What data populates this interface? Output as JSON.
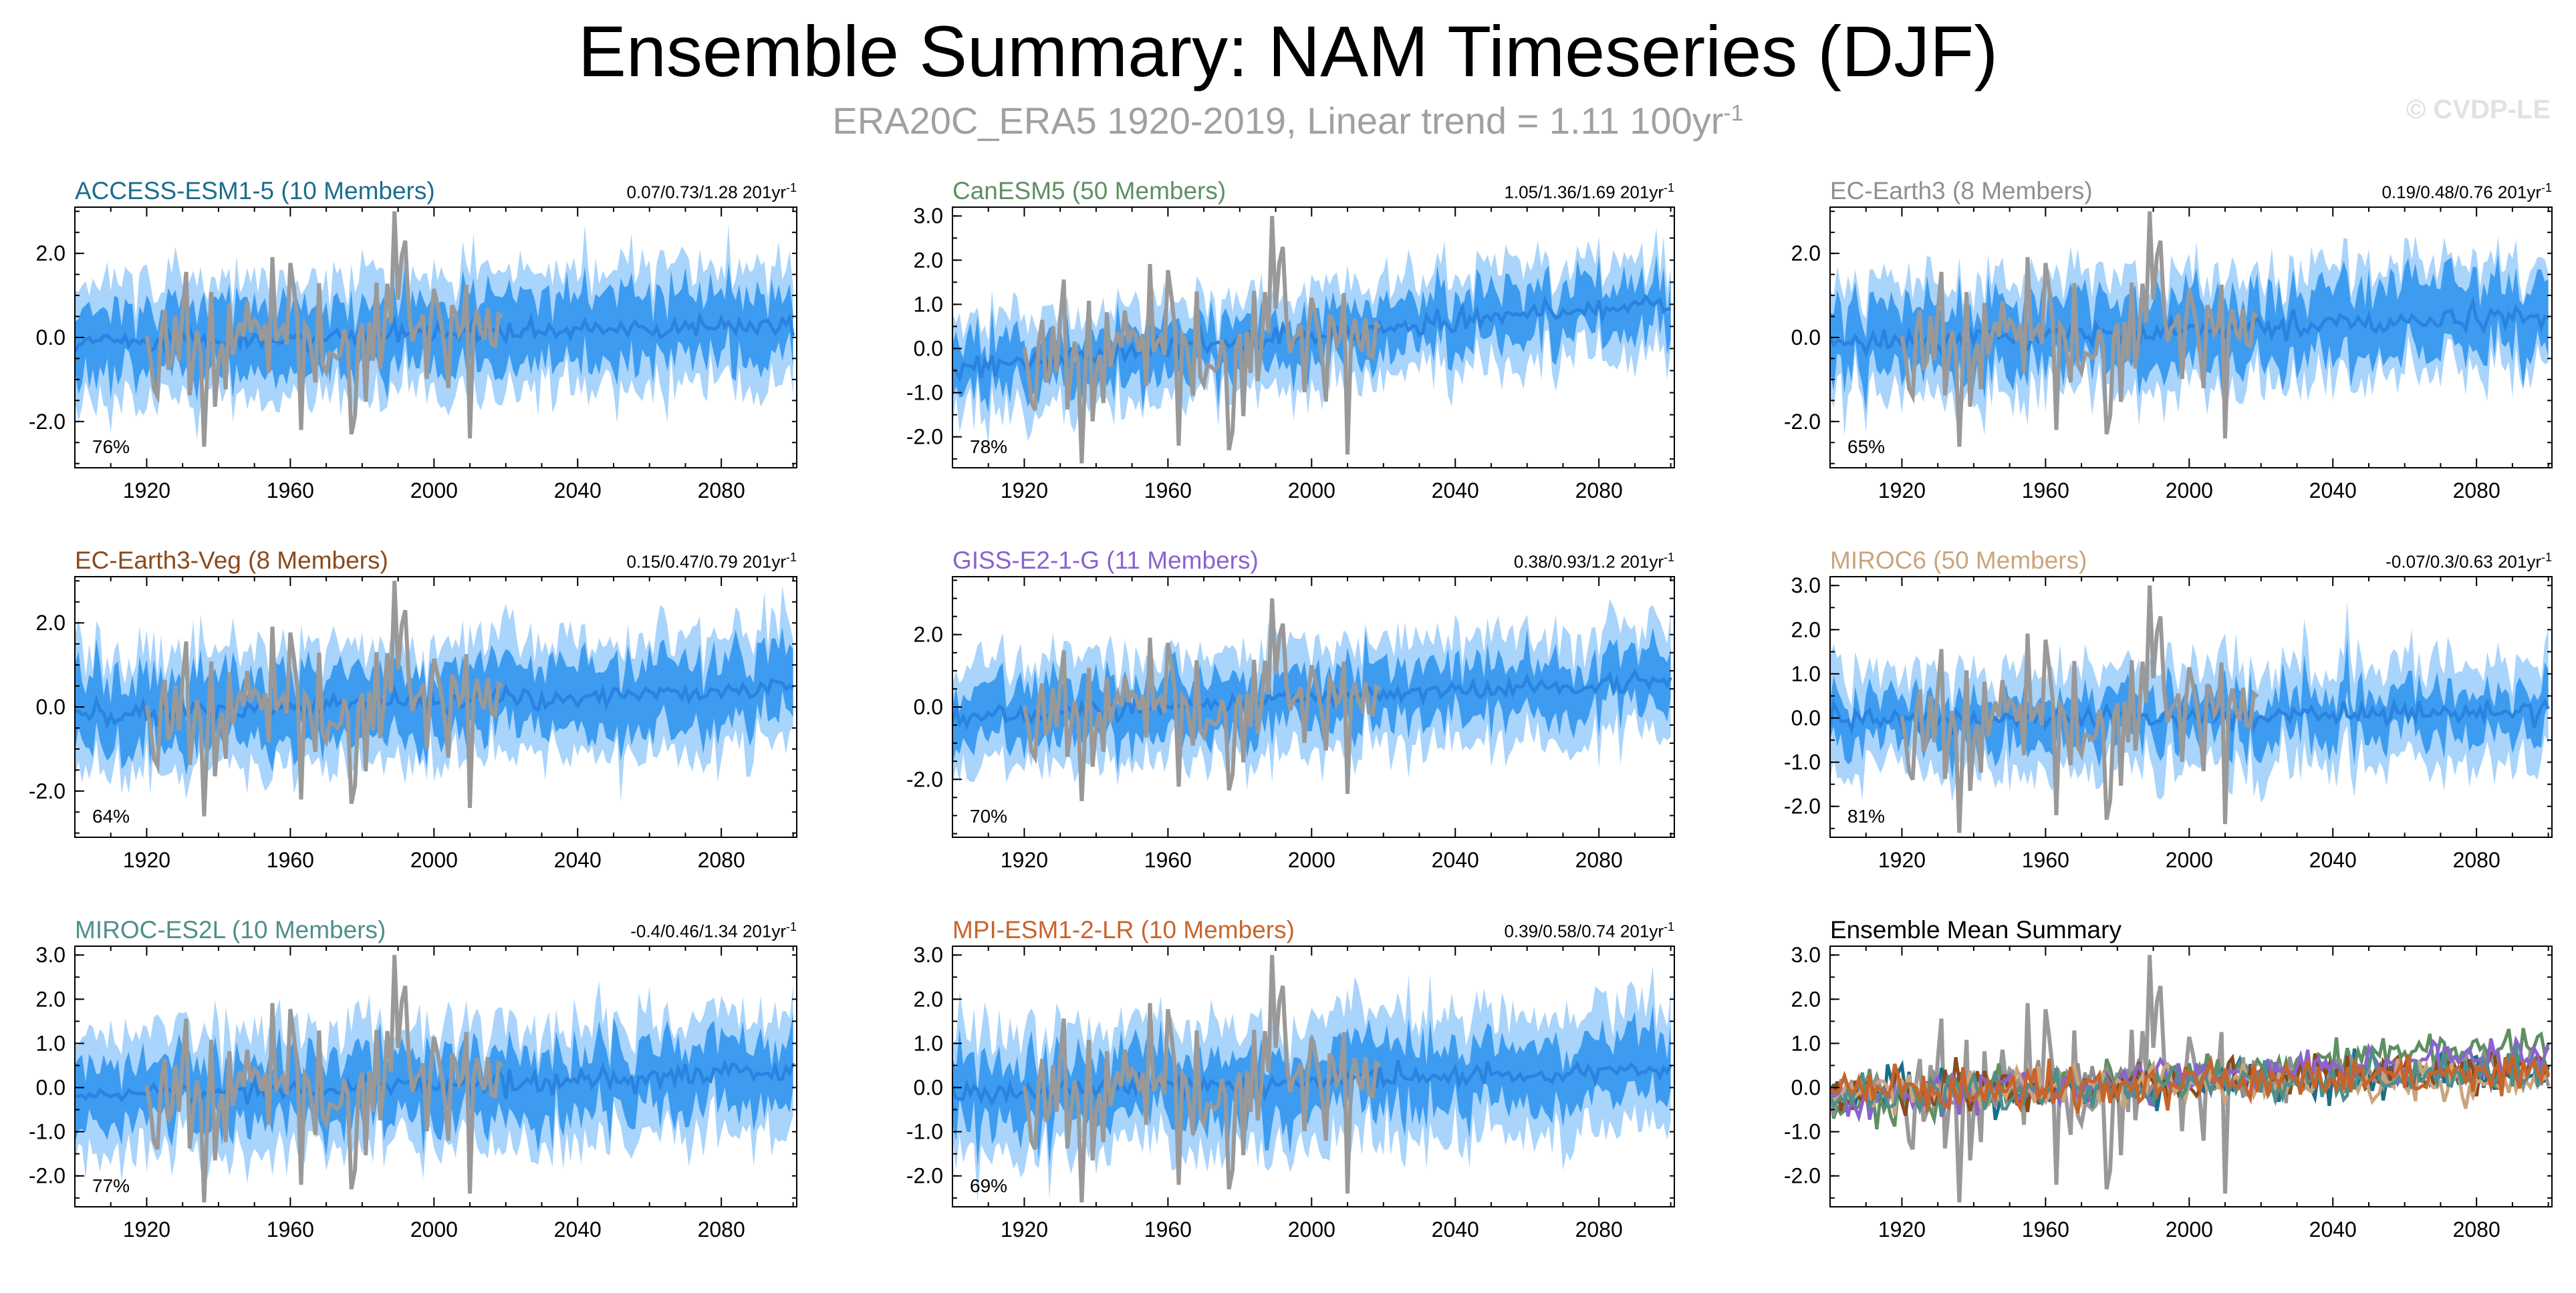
{
  "header": {
    "title": "Ensemble Summary: NAM Timeseries (DJF)",
    "subtitle": "ERA20C_ERA5 1920-2019, Linear trend = 1.11 100yr",
    "subtitle_unit_exp": "-1",
    "credit": "© CVDP-LE"
  },
  "colors": {
    "outer_band": "#a9d4fb",
    "inner_band": "#3d9cf0",
    "ensemble_mean": "#2a83e0",
    "observations": "#999999"
  },
  "chart_data": [
    {
      "type": "line",
      "id": "access",
      "title": "ACCESS-ESM1-5 (10 Members)",
      "title_color": "#1a6e8c",
      "trend": "0.07/0.73/1.28 201yr",
      "trend_exp": "-1",
      "percent": "76%",
      "ylim": [
        -3.1,
        3.1
      ],
      "yticks": [
        -2.0,
        0.0,
        2.0
      ],
      "xlim": [
        1900,
        2101
      ],
      "xticks": [
        1920,
        1960,
        2000,
        2040,
        2080
      ],
      "series": [
        {
          "role": "ensemble",
          "mean_start": -0.15,
          "mean_end": 0.35,
          "inner_halfwidth": 0.8,
          "outer_halfwidth": 1.4,
          "x_start": 1900,
          "x_end": 2100
        },
        {
          "role": "observations",
          "x_start": 1920,
          "x_end": 2019
        }
      ]
    },
    {
      "type": "line",
      "id": "canesm5",
      "title": "CanESM5 (50 Members)",
      "title_color": "#5e8f63",
      "trend": "1.05/1.36/1.69 201yr",
      "trend_exp": "-1",
      "percent": "78%",
      "ylim": [
        -2.7,
        3.2
      ],
      "yticks": [
        -2.0,
        -1.0,
        0.0,
        1.0,
        2.0,
        3.0
      ],
      "xlim": [
        1900,
        2101
      ],
      "xticks": [
        1920,
        1960,
        2000,
        2040,
        2080
      ],
      "series": [
        {
          "role": "ensemble",
          "mean_start": -0.45,
          "mean_end": 1.05,
          "inner_halfwidth": 0.55,
          "outer_halfwidth": 1.05,
          "x_start": 1900,
          "x_end": 2100
        },
        {
          "role": "observations",
          "x_start": 1920,
          "x_end": 2019
        }
      ]
    },
    {
      "type": "line",
      "id": "ecearth3",
      "title": "EC-Earth3 (8 Members)",
      "title_color": "#8f8f8f",
      "trend": "0.19/0.48/0.76 201yr",
      "trend_exp": "-1",
      "percent": "65%",
      "ylim": [
        -3.1,
        3.1
      ],
      "yticks": [
        -2.0,
        0.0,
        2.0
      ],
      "xlim": [
        1900,
        2101
      ],
      "xticks": [
        1920,
        1960,
        2000,
        2040,
        2080
      ],
      "series": [
        {
          "role": "ensemble",
          "mean_start": -0.15,
          "mean_end": 0.5,
          "inner_halfwidth": 0.8,
          "outer_halfwidth": 1.3,
          "x_start": 1900,
          "x_end": 2100
        },
        {
          "role": "observations",
          "x_start": 1920,
          "x_end": 2019
        }
      ]
    },
    {
      "type": "line",
      "id": "ecearth3veg",
      "title": "EC-Earth3-Veg (8 Members)",
      "title_color": "#8a4a1c",
      "trend": "0.15/0.47/0.79 201yr",
      "trend_exp": "-1",
      "percent": "64%",
      "ylim": [
        -3.1,
        3.1
      ],
      "yticks": [
        -2.0,
        0.0,
        2.0
      ],
      "xlim": [
        1900,
        2101
      ],
      "xticks": [
        1920,
        1960,
        2000,
        2040,
        2080
      ],
      "series": [
        {
          "role": "ensemble",
          "mean_start": -0.2,
          "mean_end": 0.45,
          "inner_halfwidth": 0.8,
          "outer_halfwidth": 1.35,
          "x_start": 1900,
          "x_end": 2100
        },
        {
          "role": "observations",
          "x_start": 1920,
          "x_end": 2019
        }
      ]
    },
    {
      "type": "line",
      "id": "giss",
      "title": "GISS-E2-1-G (11 Members)",
      "title_color": "#8a62d0",
      "trend": "0.38/0.93/1.2 201yr",
      "trend_exp": "-1",
      "percent": "70%",
      "ylim": [
        -3.6,
        3.6
      ],
      "yticks": [
        -2.0,
        0.0,
        2.0
      ],
      "xlim": [
        1900,
        2101
      ],
      "xticks": [
        1920,
        1960,
        2000,
        2040,
        2080
      ],
      "series": [
        {
          "role": "ensemble",
          "mean_start": -0.3,
          "mean_end": 0.75,
          "inner_halfwidth": 0.75,
          "outer_halfwidth": 1.4,
          "x_start": 1900,
          "x_end": 2100
        },
        {
          "role": "observations",
          "x_start": 1920,
          "x_end": 2019
        }
      ]
    },
    {
      "type": "line",
      "id": "miroc6",
      "title": "MIROC6 (50 Members)",
      "title_color": "#c9a57c",
      "trend": "-0.07/0.3/0.63 201yr",
      "trend_exp": "-1",
      "percent": "81%",
      "ylim": [
        -2.7,
        3.2
      ],
      "yticks": [
        -2.0,
        -1.0,
        0.0,
        1.0,
        2.0,
        3.0
      ],
      "xlim": [
        1900,
        2101
      ],
      "xticks": [
        1920,
        1960,
        2000,
        2040,
        2080
      ],
      "series": [
        {
          "role": "ensemble",
          "mean_start": -0.05,
          "mean_end": 0.15,
          "inner_halfwidth": 0.5,
          "outer_halfwidth": 1.1,
          "x_start": 1900,
          "x_end": 2100
        },
        {
          "role": "observations",
          "x_start": 1920,
          "x_end": 2019
        }
      ]
    },
    {
      "type": "line",
      "id": "mirocesl2",
      "title": "MIROC-ES2L (10 Members)",
      "title_color": "#4e8f8a",
      "trend": "-0.4/0.46/1.34 201yr",
      "trend_exp": "-1",
      "percent": "77%",
      "ylim": [
        -2.7,
        3.2
      ],
      "yticks": [
        -2.0,
        -1.0,
        0.0,
        1.0,
        2.0,
        3.0
      ],
      "xlim": [
        1900,
        2101
      ],
      "xticks": [
        1920,
        1960,
        2000,
        2040,
        2080
      ],
      "series": [
        {
          "role": "ensemble",
          "mean_start": -0.2,
          "mean_end": 0.35,
          "inner_halfwidth": 0.7,
          "outer_halfwidth": 1.3,
          "x_start": 1900,
          "x_end": 2100
        },
        {
          "role": "observations",
          "x_start": 1920,
          "x_end": 2019
        }
      ]
    },
    {
      "type": "line",
      "id": "mpi",
      "title": "MPI-ESM1-2-LR (10 Members)",
      "title_color": "#c8642b",
      "trend": "0.39/0.58/0.74 201yr",
      "trend_exp": "-1",
      "percent": "69%",
      "ylim": [
        -2.7,
        3.2
      ],
      "yticks": [
        -2.0,
        -1.0,
        0.0,
        1.0,
        2.0,
        3.0
      ],
      "xlim": [
        1900,
        2101
      ],
      "xticks": [
        1920,
        1960,
        2000,
        2040,
        2080
      ],
      "series": [
        {
          "role": "ensemble",
          "mean_start": -0.15,
          "mean_end": 0.4,
          "inner_halfwidth": 0.7,
          "outer_halfwidth": 1.35,
          "x_start": 1900,
          "x_end": 2100
        },
        {
          "role": "observations",
          "x_start": 1920,
          "x_end": 2019
        }
      ]
    },
    {
      "type": "line",
      "id": "summary",
      "title": "Ensemble Mean Summary",
      "title_color": "#000000",
      "trend": "",
      "trend_exp": "",
      "percent": "",
      "ylim": [
        -2.7,
        3.2
      ],
      "yticks": [
        -2.0,
        -1.0,
        0.0,
        1.0,
        2.0,
        3.0
      ],
      "xlim": [
        1900,
        2101
      ],
      "xticks": [
        1920,
        1960,
        2000,
        2040,
        2080
      ],
      "series": [
        {
          "role": "observations",
          "x_start": 1920,
          "x_end": 2019
        },
        {
          "role": "model_mean",
          "color": "#1a6e8c",
          "mean_start": -0.15,
          "mean_end": 0.35
        },
        {
          "role": "model_mean",
          "color": "#5e8f63",
          "mean_start": -0.45,
          "mean_end": 1.05
        },
        {
          "role": "model_mean",
          "color": "#8f8f8f",
          "mean_start": -0.15,
          "mean_end": 0.5
        },
        {
          "role": "model_mean",
          "color": "#8a4a1c",
          "mean_start": -0.2,
          "mean_end": 0.45
        },
        {
          "role": "model_mean",
          "color": "#8a62d0",
          "mean_start": -0.3,
          "mean_end": 0.75
        },
        {
          "role": "model_mean",
          "color": "#c9a57c",
          "mean_start": -0.05,
          "mean_end": 0.15
        },
        {
          "role": "model_mean",
          "color": "#4e8f8a",
          "mean_start": -0.2,
          "mean_end": 0.35
        },
        {
          "role": "model_mean",
          "color": "#c8642b",
          "mean_start": -0.15,
          "mean_end": 0.4
        }
      ]
    }
  ]
}
